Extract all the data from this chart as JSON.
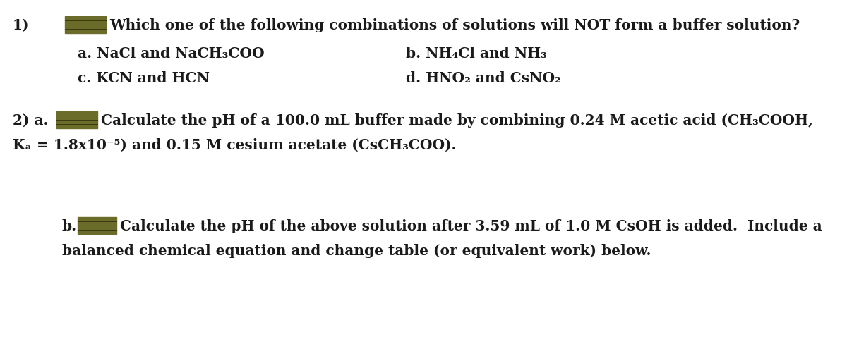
{
  "background_color": "#ffffff",
  "text_color": "#1a1a1a",
  "redacted_color": "#6b6b2a",
  "q1_number": "1)",
  "q1_blank": "____",
  "q1_text": "Which one of the following combinations of solutions will NOT form a buffer solution?",
  "q1_a": "a. NaCl and NaCH₃COO",
  "q1_b": "b. NH₄Cl and NH₃",
  "q1_c": "c. KCN and HCN",
  "q1_d": "d. HNO₂ and CsNO₂",
  "q2a_label": "2) a.",
  "q2a_line1": "Calculate the pH of a 100.0 mL buffer made by combining 0.24 M acetic acid (CH₃COOH,",
  "q2a_line2": "Kₐ = 1.8x10⁻⁵) and 0.15 M cesium acetate (CsCH₃COO).",
  "q2b_label": "b.",
  "q2b_line1": "Calculate the pH of the above solution after 3.59 mL of 1.0 M CsOH is added.  Include a",
  "q2b_line2": "balanced chemical equation and change table (or equivalent work) below.",
  "font_size": 14.5,
  "font_family": "serif"
}
